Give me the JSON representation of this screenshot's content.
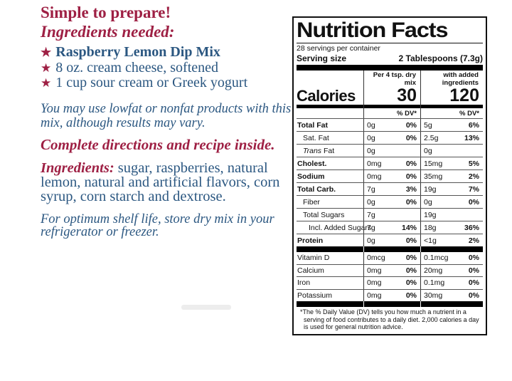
{
  "colors": {
    "crimson": "#9E2044",
    "blue": "#2B5781",
    "panel_ink": "#111111"
  },
  "left_panel": {
    "headline": "Simple to prepare!",
    "subheadline": "Ingredients needed:",
    "bullet_icon": "★",
    "bullets": [
      {
        "text": "Raspberry Lemon Dip Mix",
        "bold": true
      },
      {
        "text": "8 oz. cream cheese, softened",
        "bold": false
      },
      {
        "text": "1 cup sour cream or Greek yogurt",
        "bold": false
      }
    ],
    "lowfat_note": "You may use lowfat or nonfat products with this mix, although results may vary.",
    "directions": "Complete directions and recipe inside.",
    "ingredients_label": "Ingredients:",
    "ingredients_text": " sugar, raspberries, natural lemon, natural and artificial flavors, corn syrup, corn starch and dextrose.",
    "storage_note": "For optimum shelf life, store dry mix in your refrigerator or freezer."
  },
  "nutrition": {
    "title": "Nutrition Facts",
    "servings_per_container": "28 servings per container",
    "serving_size_label": "Serving size",
    "serving_size_value": "2 Tablespoons (7.3g)",
    "col1_header": "Per 4 tsp. dry mix",
    "col2_header": "with added ingredients",
    "calories_label": "Calories",
    "calories_col1": "30",
    "calories_col2": "120",
    "dv_header": "% DV*",
    "rows": [
      {
        "label": "Total Fat",
        "bold": true,
        "indent": 0,
        "italic_prefix": "",
        "v1": "0g",
        "p1": "0%",
        "v2": "5g",
        "p2": "6%"
      },
      {
        "label": "Sat. Fat",
        "bold": false,
        "indent": 1,
        "italic_prefix": "",
        "v1": "0g",
        "p1": "0%",
        "v2": "2.5g",
        "p2": "13%"
      },
      {
        "label": " Fat",
        "bold": false,
        "indent": 1,
        "italic_prefix": "Trans",
        "v1": "0g",
        "p1": "",
        "v2": "0g",
        "p2": ""
      },
      {
        "label": "Cholest.",
        "bold": true,
        "indent": 0,
        "italic_prefix": "",
        "v1": "0mg",
        "p1": "0%",
        "v2": "15mg",
        "p2": "5%"
      },
      {
        "label": "Sodium",
        "bold": true,
        "indent": 0,
        "italic_prefix": "",
        "v1": "0mg",
        "p1": "0%",
        "v2": "35mg",
        "p2": "2%"
      },
      {
        "label": "Total Carb.",
        "bold": true,
        "indent": 0,
        "italic_prefix": "",
        "v1": "7g",
        "p1": "3%",
        "v2": "19g",
        "p2": "7%"
      },
      {
        "label": "Fiber",
        "bold": false,
        "indent": 1,
        "italic_prefix": "",
        "v1": "0g",
        "p1": "0%",
        "v2": "0g",
        "p2": "0%"
      },
      {
        "label": "Total Sugars",
        "bold": false,
        "indent": 1,
        "italic_prefix": "",
        "v1": "7g",
        "p1": "",
        "v2": "19g",
        "p2": ""
      },
      {
        "label": "Incl. Added Sugars",
        "bold": false,
        "indent": 2,
        "italic_prefix": "",
        "v1": "7g",
        "p1": "14%",
        "v2": "18g",
        "p2": "36%"
      },
      {
        "label": "Protein",
        "bold": true,
        "indent": 0,
        "italic_prefix": "",
        "v1": "0g",
        "p1": "0%",
        "v2": "<1g",
        "p2": "2%"
      }
    ],
    "vitamins": [
      {
        "label": "Vitamin D",
        "v1": "0mcg",
        "p1": "0%",
        "v2": "0.1mcg",
        "p2": "0%"
      },
      {
        "label": "Calcium",
        "v1": "0mg",
        "p1": "0%",
        "v2": "20mg",
        "p2": "0%"
      },
      {
        "label": "Iron",
        "v1": "0mg",
        "p1": "0%",
        "v2": "0.1mg",
        "p2": "0%"
      },
      {
        "label": "Potassium",
        "v1": "0mg",
        "p1": "0%",
        "v2": "30mg",
        "p2": "0%"
      }
    ],
    "footnote": "*The % Daily Value (DV) tells you how much a nutrient in a serving of food contributes to a daily diet. 2,000 calories a day is used for general nutrition advice."
  }
}
